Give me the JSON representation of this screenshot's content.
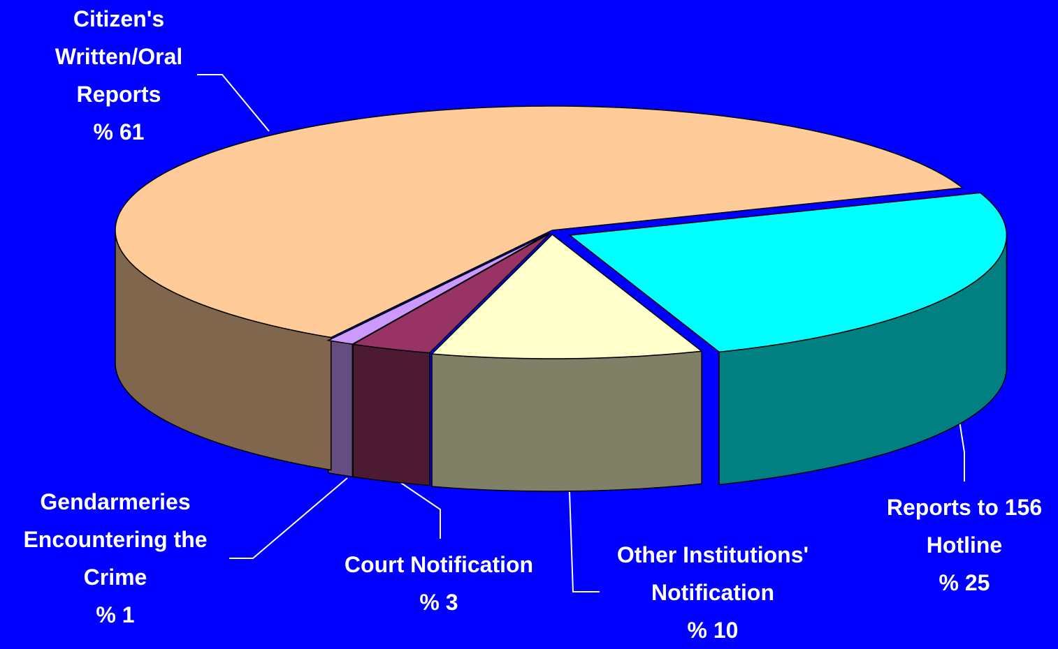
{
  "chart_data": {
    "type": "pie3d",
    "categories": [
      "Reports to 156 Hotline",
      "Other Institutions' Notification",
      "Court Notification",
      "Gendarmeries Encountering the Crime",
      "Citizen's Written/Oral Reports"
    ],
    "values": [
      25,
      10,
      3,
      1,
      61
    ],
    "value_labels": [
      "% 25",
      "% 10",
      "% 3",
      "% 1",
      "% 61"
    ],
    "colors": [
      "#00ffff",
      "#ffffcc",
      "#993366",
      "#cc99ff",
      "#ffcc99"
    ]
  }
}
